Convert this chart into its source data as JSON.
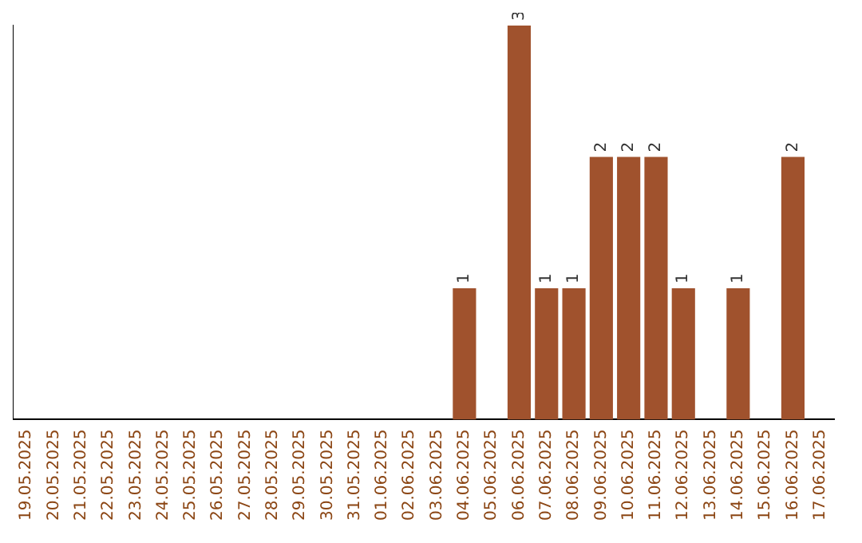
{
  "chart_data": {
    "type": "bar",
    "categories": [
      "19.05.2025",
      "20.05.2025",
      "21.05.2025",
      "22.05.2025",
      "23.05.2025",
      "24.05.2025",
      "25.05.2025",
      "26.05.2025",
      "27.05.2025",
      "28.05.2025",
      "29.05.2025",
      "30.05.2025",
      "31.05.2025",
      "01.06.2025",
      "02.06.2025",
      "03.06.2025",
      "04.06.2025",
      "05.06.2025",
      "06.06.2025",
      "07.06.2025",
      "08.06.2025",
      "09.06.2025",
      "10.06.2025",
      "11.06.2025",
      "12.06.2025",
      "13.06.2025",
      "14.06.2025",
      "15.06.2025",
      "16.06.2025",
      "17.06.2025"
    ],
    "values": [
      null,
      null,
      null,
      null,
      null,
      null,
      null,
      null,
      null,
      null,
      null,
      null,
      null,
      null,
      null,
      null,
      1,
      null,
      3,
      1,
      1,
      2,
      2,
      2,
      1,
      null,
      1,
      null,
      2,
      null
    ],
    "data_labels": true,
    "color": "#a0522d",
    "grid": false,
    "legend": false,
    "tick_labels": "x"
  }
}
